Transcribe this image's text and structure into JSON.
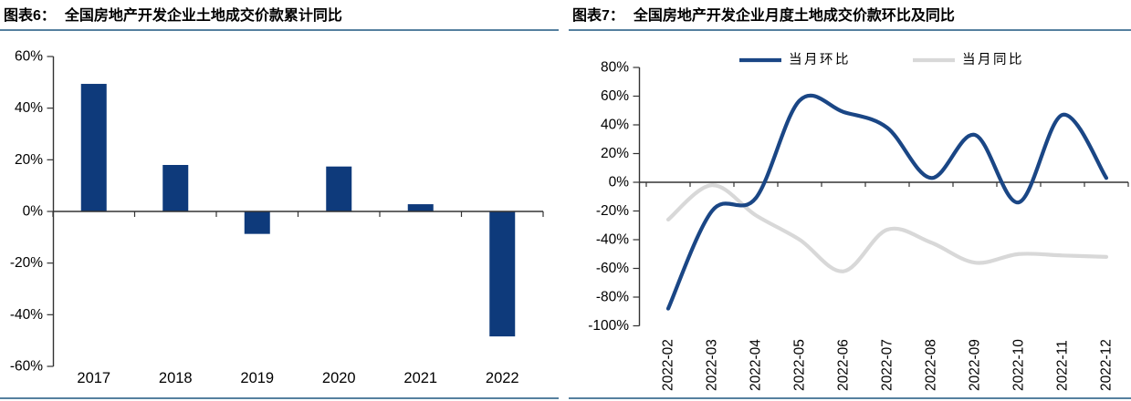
{
  "page": {
    "background": "#ffffff"
  },
  "colors": {
    "bar_navy": "#0E3A7B",
    "line_navy": "#1A4685",
    "line_gray": "#D8D8D8",
    "rule_blue": "#56809F",
    "axis": "#333333",
    "text": "#000000"
  },
  "figure6": {
    "label": "图表6：",
    "title": "全国房地产开发企业土地成交价款累计同比",
    "chart_data": {
      "type": "bar",
      "categories": [
        "2017",
        "2018",
        "2019",
        "2020",
        "2021",
        "2022"
      ],
      "values": [
        49.4,
        18.0,
        -8.7,
        17.4,
        2.8,
        -48.4
      ],
      "unit": "%",
      "title": "全国房地产开发企业土地成交价款累计同比",
      "xlabel": "",
      "ylabel": "",
      "ylim": [
        -60,
        60
      ],
      "ytick_step": 20,
      "yticks": [
        "60%",
        "40%",
        "20%",
        "0%",
        "-20%",
        "-40%",
        "-60%"
      ],
      "grid": false,
      "bar_color": "#0E3A7B"
    }
  },
  "figure7": {
    "label": "图表7：",
    "title": "全国房地产开发企业月度土地成交价款环比及同比",
    "chart_data": {
      "type": "line",
      "x": [
        "2022-02",
        "2022-03",
        "2022-04",
        "2022-05",
        "2022-06",
        "2022-07",
        "2022-08",
        "2022-09",
        "2022-10",
        "2022-11",
        "2022-12"
      ],
      "series": [
        {
          "name": "当月环比",
          "color": "#1A4685",
          "values": [
            -88,
            -20,
            -11,
            57,
            49,
            38,
            3,
            33,
            -14,
            47,
            3
          ]
        },
        {
          "name": "当月同比",
          "color": "#D8D8D8",
          "values": [
            -26,
            -2,
            -23,
            -40,
            -62,
            -33,
            -42,
            -56,
            -50,
            -51,
            -52
          ]
        }
      ],
      "unit": "%",
      "title": "全国房地产开发企业月度土地成交价款环比及同比",
      "ylim": [
        -100,
        80
      ],
      "ytick_step": 20,
      "yticks": [
        "80%",
        "60%",
        "40%",
        "20%",
        "0%",
        "-20%",
        "-40%",
        "-60%",
        "-80%",
        "-100%"
      ],
      "legend_position": "top",
      "smooth": true,
      "grid": false
    }
  }
}
